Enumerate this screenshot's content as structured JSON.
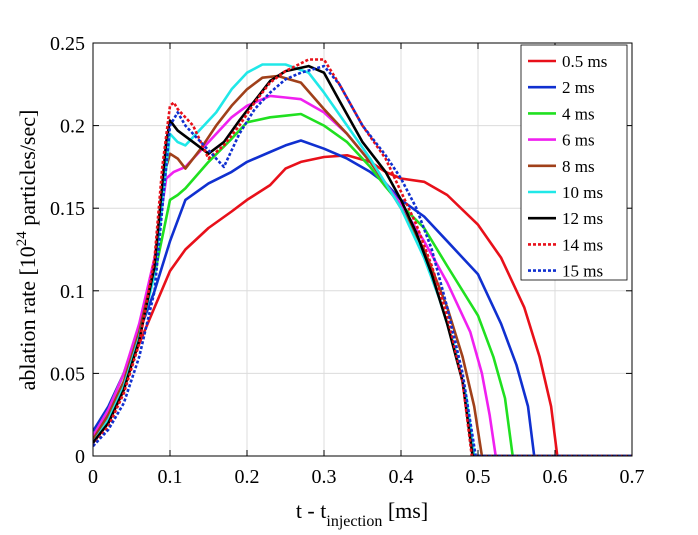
{
  "chart_data": {
    "type": "line",
    "title": "",
    "xlabel": {
      "main": "t - t",
      "subscript": "injection",
      "unit": " [ms]"
    },
    "ylabel": {
      "prefix": "ablation rate [10",
      "superscript": "24",
      "suffix": " particles/sec]"
    },
    "xlim": [
      0,
      0.7
    ],
    "ylim": [
      0,
      0.25
    ],
    "xticks": [
      "0",
      "0.1",
      "0.2",
      "0.3",
      "0.4",
      "0.5",
      "0.6",
      "0.7"
    ],
    "yticks": [
      "0",
      "0.05",
      "0.1",
      "0.15",
      "0.2",
      "0.25"
    ],
    "grid": true,
    "legend_position": "top-right",
    "series": [
      {
        "name": "0.5 ms",
        "color": "#e8101a",
        "dash": "solid",
        "points": [
          [
            0,
            0.01
          ],
          [
            0.02,
            0.025
          ],
          [
            0.04,
            0.045
          ],
          [
            0.06,
            0.068
          ],
          [
            0.08,
            0.09
          ],
          [
            0.1,
            0.112
          ],
          [
            0.12,
            0.125
          ],
          [
            0.15,
            0.138
          ],
          [
            0.18,
            0.148
          ],
          [
            0.2,
            0.155
          ],
          [
            0.23,
            0.164
          ],
          [
            0.25,
            0.174
          ],
          [
            0.27,
            0.178
          ],
          [
            0.3,
            0.181
          ],
          [
            0.33,
            0.182
          ],
          [
            0.36,
            0.178
          ],
          [
            0.38,
            0.172
          ],
          [
            0.4,
            0.168
          ],
          [
            0.43,
            0.166
          ],
          [
            0.46,
            0.158
          ],
          [
            0.5,
            0.14
          ],
          [
            0.53,
            0.12
          ],
          [
            0.56,
            0.09
          ],
          [
            0.58,
            0.06
          ],
          [
            0.595,
            0.03
          ],
          [
            0.603,
            0.0
          ],
          [
            0.7,
            0.0
          ]
        ]
      },
      {
        "name": "2 ms",
        "color": "#1030d0",
        "dash": "solid",
        "points": [
          [
            0,
            0.015
          ],
          [
            0.02,
            0.03
          ],
          [
            0.04,
            0.05
          ],
          [
            0.06,
            0.075
          ],
          [
            0.08,
            0.1
          ],
          [
            0.1,
            0.13
          ],
          [
            0.12,
            0.155
          ],
          [
            0.15,
            0.165
          ],
          [
            0.18,
            0.172
          ],
          [
            0.2,
            0.178
          ],
          [
            0.23,
            0.184
          ],
          [
            0.25,
            0.188
          ],
          [
            0.27,
            0.191
          ],
          [
            0.3,
            0.186
          ],
          [
            0.33,
            0.18
          ],
          [
            0.36,
            0.172
          ],
          [
            0.38,
            0.165
          ],
          [
            0.4,
            0.155
          ],
          [
            0.43,
            0.145
          ],
          [
            0.46,
            0.13
          ],
          [
            0.5,
            0.11
          ],
          [
            0.53,
            0.08
          ],
          [
            0.55,
            0.055
          ],
          [
            0.565,
            0.03
          ],
          [
            0.573,
            0.0
          ],
          [
            0.7,
            0.0
          ]
        ]
      },
      {
        "name": "4 ms",
        "color": "#20e020",
        "dash": "solid",
        "points": [
          [
            0,
            0.012
          ],
          [
            0.02,
            0.028
          ],
          [
            0.04,
            0.05
          ],
          [
            0.06,
            0.078
          ],
          [
            0.08,
            0.11
          ],
          [
            0.1,
            0.155
          ],
          [
            0.11,
            0.158
          ],
          [
            0.12,
            0.162
          ],
          [
            0.15,
            0.178
          ],
          [
            0.18,
            0.192
          ],
          [
            0.2,
            0.202
          ],
          [
            0.23,
            0.205
          ],
          [
            0.25,
            0.206
          ],
          [
            0.27,
            0.207
          ],
          [
            0.3,
            0.2
          ],
          [
            0.33,
            0.19
          ],
          [
            0.36,
            0.175
          ],
          [
            0.38,
            0.163
          ],
          [
            0.4,
            0.152
          ],
          [
            0.43,
            0.138
          ],
          [
            0.46,
            0.115
          ],
          [
            0.5,
            0.085
          ],
          [
            0.52,
            0.06
          ],
          [
            0.535,
            0.035
          ],
          [
            0.545,
            0.0
          ],
          [
            0.7,
            0.0
          ]
        ]
      },
      {
        "name": "6 ms",
        "color": "#f020f0",
        "dash": "solid",
        "points": [
          [
            0,
            0.012
          ],
          [
            0.02,
            0.028
          ],
          [
            0.04,
            0.05
          ],
          [
            0.06,
            0.08
          ],
          [
            0.08,
            0.12
          ],
          [
            0.095,
            0.168
          ],
          [
            0.105,
            0.172
          ],
          [
            0.12,
            0.175
          ],
          [
            0.15,
            0.19
          ],
          [
            0.18,
            0.205
          ],
          [
            0.2,
            0.212
          ],
          [
            0.23,
            0.218
          ],
          [
            0.25,
            0.217
          ],
          [
            0.27,
            0.216
          ],
          [
            0.3,
            0.208
          ],
          [
            0.33,
            0.195
          ],
          [
            0.36,
            0.178
          ],
          [
            0.38,
            0.165
          ],
          [
            0.4,
            0.152
          ],
          [
            0.43,
            0.13
          ],
          [
            0.46,
            0.105
          ],
          [
            0.49,
            0.075
          ],
          [
            0.505,
            0.05
          ],
          [
            0.515,
            0.025
          ],
          [
            0.523,
            0.0
          ],
          [
            0.7,
            0.0
          ]
        ]
      },
      {
        "name": "8 ms",
        "color": "#a0401a",
        "dash": "solid",
        "points": [
          [
            0,
            0.01
          ],
          [
            0.02,
            0.025
          ],
          [
            0.04,
            0.045
          ],
          [
            0.06,
            0.075
          ],
          [
            0.08,
            0.115
          ],
          [
            0.095,
            0.175
          ],
          [
            0.1,
            0.183
          ],
          [
            0.11,
            0.18
          ],
          [
            0.12,
            0.174
          ],
          [
            0.14,
            0.186
          ],
          [
            0.16,
            0.2
          ],
          [
            0.18,
            0.212
          ],
          [
            0.2,
            0.222
          ],
          [
            0.22,
            0.229
          ],
          [
            0.24,
            0.23
          ],
          [
            0.27,
            0.226
          ],
          [
            0.3,
            0.21
          ],
          [
            0.33,
            0.195
          ],
          [
            0.36,
            0.178
          ],
          [
            0.38,
            0.165
          ],
          [
            0.4,
            0.15
          ],
          [
            0.43,
            0.125
          ],
          [
            0.46,
            0.09
          ],
          [
            0.48,
            0.06
          ],
          [
            0.495,
            0.03
          ],
          [
            0.505,
            0.0
          ],
          [
            0.7,
            0.0
          ]
        ]
      },
      {
        "name": "10 ms",
        "color": "#20e8e8",
        "dash": "solid",
        "points": [
          [
            0,
            0.008
          ],
          [
            0.02,
            0.022
          ],
          [
            0.04,
            0.042
          ],
          [
            0.06,
            0.072
          ],
          [
            0.08,
            0.11
          ],
          [
            0.095,
            0.175
          ],
          [
            0.1,
            0.195
          ],
          [
            0.11,
            0.19
          ],
          [
            0.12,
            0.188
          ],
          [
            0.14,
            0.198
          ],
          [
            0.16,
            0.208
          ],
          [
            0.18,
            0.222
          ],
          [
            0.2,
            0.232
          ],
          [
            0.22,
            0.237
          ],
          [
            0.25,
            0.237
          ],
          [
            0.28,
            0.232
          ],
          [
            0.3,
            0.22
          ],
          [
            0.33,
            0.2
          ],
          [
            0.36,
            0.18
          ],
          [
            0.38,
            0.165
          ],
          [
            0.4,
            0.15
          ],
          [
            0.43,
            0.12
          ],
          [
            0.45,
            0.095
          ],
          [
            0.47,
            0.065
          ],
          [
            0.485,
            0.035
          ],
          [
            0.495,
            0.0
          ],
          [
            0.7,
            0.0
          ]
        ]
      },
      {
        "name": "12 ms",
        "color": "#000000",
        "dash": "solid",
        "points": [
          [
            0,
            0.008
          ],
          [
            0.02,
            0.02
          ],
          [
            0.04,
            0.04
          ],
          [
            0.06,
            0.07
          ],
          [
            0.08,
            0.115
          ],
          [
            0.095,
            0.19
          ],
          [
            0.1,
            0.203
          ],
          [
            0.11,
            0.197
          ],
          [
            0.13,
            0.19
          ],
          [
            0.15,
            0.183
          ],
          [
            0.17,
            0.19
          ],
          [
            0.19,
            0.203
          ],
          [
            0.21,
            0.215
          ],
          [
            0.23,
            0.227
          ],
          [
            0.25,
            0.233
          ],
          [
            0.28,
            0.236
          ],
          [
            0.3,
            0.232
          ],
          [
            0.32,
            0.215
          ],
          [
            0.35,
            0.19
          ],
          [
            0.38,
            0.172
          ],
          [
            0.4,
            0.155
          ],
          [
            0.42,
            0.135
          ],
          [
            0.44,
            0.11
          ],
          [
            0.46,
            0.08
          ],
          [
            0.48,
            0.045
          ],
          [
            0.493,
            0.0
          ],
          [
            0.7,
            0.0
          ]
        ]
      },
      {
        "name": "14 ms",
        "color": "#e8101a",
        "dash": "dotted",
        "points": [
          [
            0,
            0.006
          ],
          [
            0.02,
            0.018
          ],
          [
            0.04,
            0.038
          ],
          [
            0.06,
            0.068
          ],
          [
            0.08,
            0.12
          ],
          [
            0.09,
            0.175
          ],
          [
            0.1,
            0.212
          ],
          [
            0.105,
            0.214
          ],
          [
            0.11,
            0.21
          ],
          [
            0.13,
            0.2
          ],
          [
            0.15,
            0.18
          ],
          [
            0.17,
            0.188
          ],
          [
            0.19,
            0.2
          ],
          [
            0.21,
            0.214
          ],
          [
            0.23,
            0.226
          ],
          [
            0.25,
            0.233
          ],
          [
            0.28,
            0.24
          ],
          [
            0.3,
            0.24
          ],
          [
            0.32,
            0.225
          ],
          [
            0.35,
            0.2
          ],
          [
            0.38,
            0.18
          ],
          [
            0.4,
            0.16
          ],
          [
            0.42,
            0.14
          ],
          [
            0.44,
            0.115
          ],
          [
            0.46,
            0.085
          ],
          [
            0.48,
            0.045
          ],
          [
            0.492,
            0.0
          ],
          [
            0.7,
            0.0
          ]
        ]
      },
      {
        "name": "15 ms",
        "color": "#1030d0",
        "dash": "dotted",
        "points": [
          [
            0,
            0.006
          ],
          [
            0.02,
            0.016
          ],
          [
            0.04,
            0.032
          ],
          [
            0.06,
            0.06
          ],
          [
            0.08,
            0.1
          ],
          [
            0.09,
            0.15
          ],
          [
            0.1,
            0.2
          ],
          [
            0.11,
            0.208
          ],
          [
            0.12,
            0.2
          ],
          [
            0.14,
            0.19
          ],
          [
            0.16,
            0.18
          ],
          [
            0.17,
            0.175
          ],
          [
            0.19,
            0.195
          ],
          [
            0.21,
            0.21
          ],
          [
            0.23,
            0.22
          ],
          [
            0.25,
            0.228
          ],
          [
            0.27,
            0.232
          ],
          [
            0.3,
            0.236
          ],
          [
            0.32,
            0.225
          ],
          [
            0.35,
            0.2
          ],
          [
            0.38,
            0.182
          ],
          [
            0.4,
            0.168
          ],
          [
            0.42,
            0.15
          ],
          [
            0.44,
            0.125
          ],
          [
            0.46,
            0.09
          ],
          [
            0.48,
            0.05
          ],
          [
            0.497,
            0.0
          ],
          [
            0.7,
            0.0
          ]
        ]
      }
    ]
  }
}
